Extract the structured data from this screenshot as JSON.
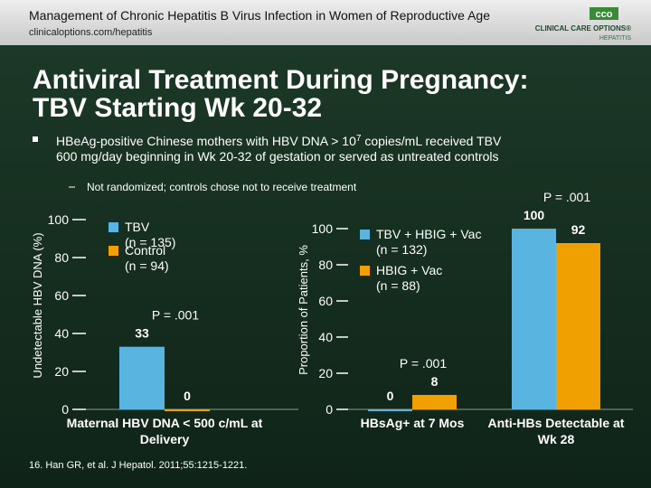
{
  "header": {
    "title": "Management of Chronic Hepatitis B Virus Infection in Women of Reproductive Age",
    "url": "clinicaloptions.com/hepatitis",
    "logo_mark": "cco",
    "logo_name": "CLINICAL CARE OPTIONS®",
    "logo_sub": "HEPATITIS"
  },
  "title": [
    "Antiviral Treatment During Pregnancy:",
    "TBV Starting Wk 20-32"
  ],
  "bullet": {
    "text": "HBeAg-positive Chinese mothers with HBV DNA > 10",
    "superscript": "7",
    "text_end": " copies/mL received TBV",
    "line2": "600 mg/day beginning in Wk 20-32 of gestation or served as untreated controls"
  },
  "sub_bullet": "Not randomized; controls chose not to receive treatment",
  "footnote": "16. Han GR, et al. J Hepatol. 2011;55:1215-1221.",
  "chart_data": [
    {
      "type": "bar",
      "ylabel": "Undetectable HBV DNA (%)",
      "categories": [
        "Maternal HBV DNA < 500 c/mL at Delivery"
      ],
      "series": [
        {
          "name": "TBV (n = 135)",
          "color": "#5ab4e0",
          "values": [
            33
          ]
        },
        {
          "name": "Control (n = 94)",
          "color": "#f0a000",
          "values": [
            0
          ]
        }
      ],
      "annotations": [
        "P = .001"
      ],
      "ylim": [
        0,
        100
      ],
      "yticks": [
        0,
        20,
        40,
        60,
        80,
        100
      ]
    },
    {
      "type": "bar",
      "ylabel": "Proportion of Patients, %",
      "categories": [
        "HBsAg+ at 7 Mos",
        "Anti-HBs Detectable at Wk 28"
      ],
      "series": [
        {
          "name": "TBV + HBIG + Vac (n = 132)",
          "color": "#5ab4e0",
          "values": [
            0,
            100
          ]
        },
        {
          "name": "HBIG + Vac (n = 88)",
          "color": "#f0a000",
          "values": [
            8,
            92
          ]
        }
      ],
      "annotations": [
        "P = .001",
        "P = .001"
      ],
      "ylim": [
        0,
        100
      ],
      "yticks": [
        0,
        20,
        40,
        60,
        80,
        100
      ]
    }
  ]
}
